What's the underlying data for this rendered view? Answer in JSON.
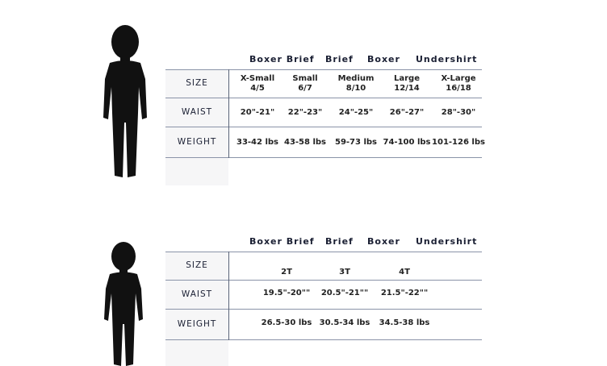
{
  "charts": [
    {
      "categories": [
        "Boxer Brief",
        "Brief",
        "Boxer",
        "Undershirt"
      ],
      "rows": [
        {
          "label": "SIZE",
          "values": [
            "X-Small\n4/5",
            "Small\n6/7",
            "Medium\n8/10",
            "Large\n12/14",
            "X-Large\n16/18"
          ]
        },
        {
          "label": "WAIST",
          "values": [
            "20\"-21\"",
            "22\"-23\"",
            "24\"-25\"",
            "26\"-27\"",
            "28\"-30\""
          ]
        },
        {
          "label": "WEIGHT",
          "values": [
            "33-42 lbs",
            "43-58 lbs",
            "59-73 lbs",
            "74-100 lbs",
            "101-126 lbs"
          ]
        }
      ]
    },
    {
      "categories": [
        "Boxer Brief",
        "Brief",
        "Boxer",
        "Undershirt"
      ],
      "rows": [
        {
          "label": "SIZE",
          "values": [
            "2T",
            "3T",
            "4T"
          ]
        },
        {
          "label": "WAIST",
          "values": [
            "19.5\"-20\"\"",
            "20.5\"-21\"\"",
            "21.5\"-22\"\""
          ]
        },
        {
          "label": "WEIGHT",
          "values": [
            "26.5-30 lbs",
            "30.5-34 lbs",
            "34.5-38 lbs"
          ]
        }
      ]
    }
  ],
  "icons": {
    "silhouette": "child-silhouette-icon"
  }
}
